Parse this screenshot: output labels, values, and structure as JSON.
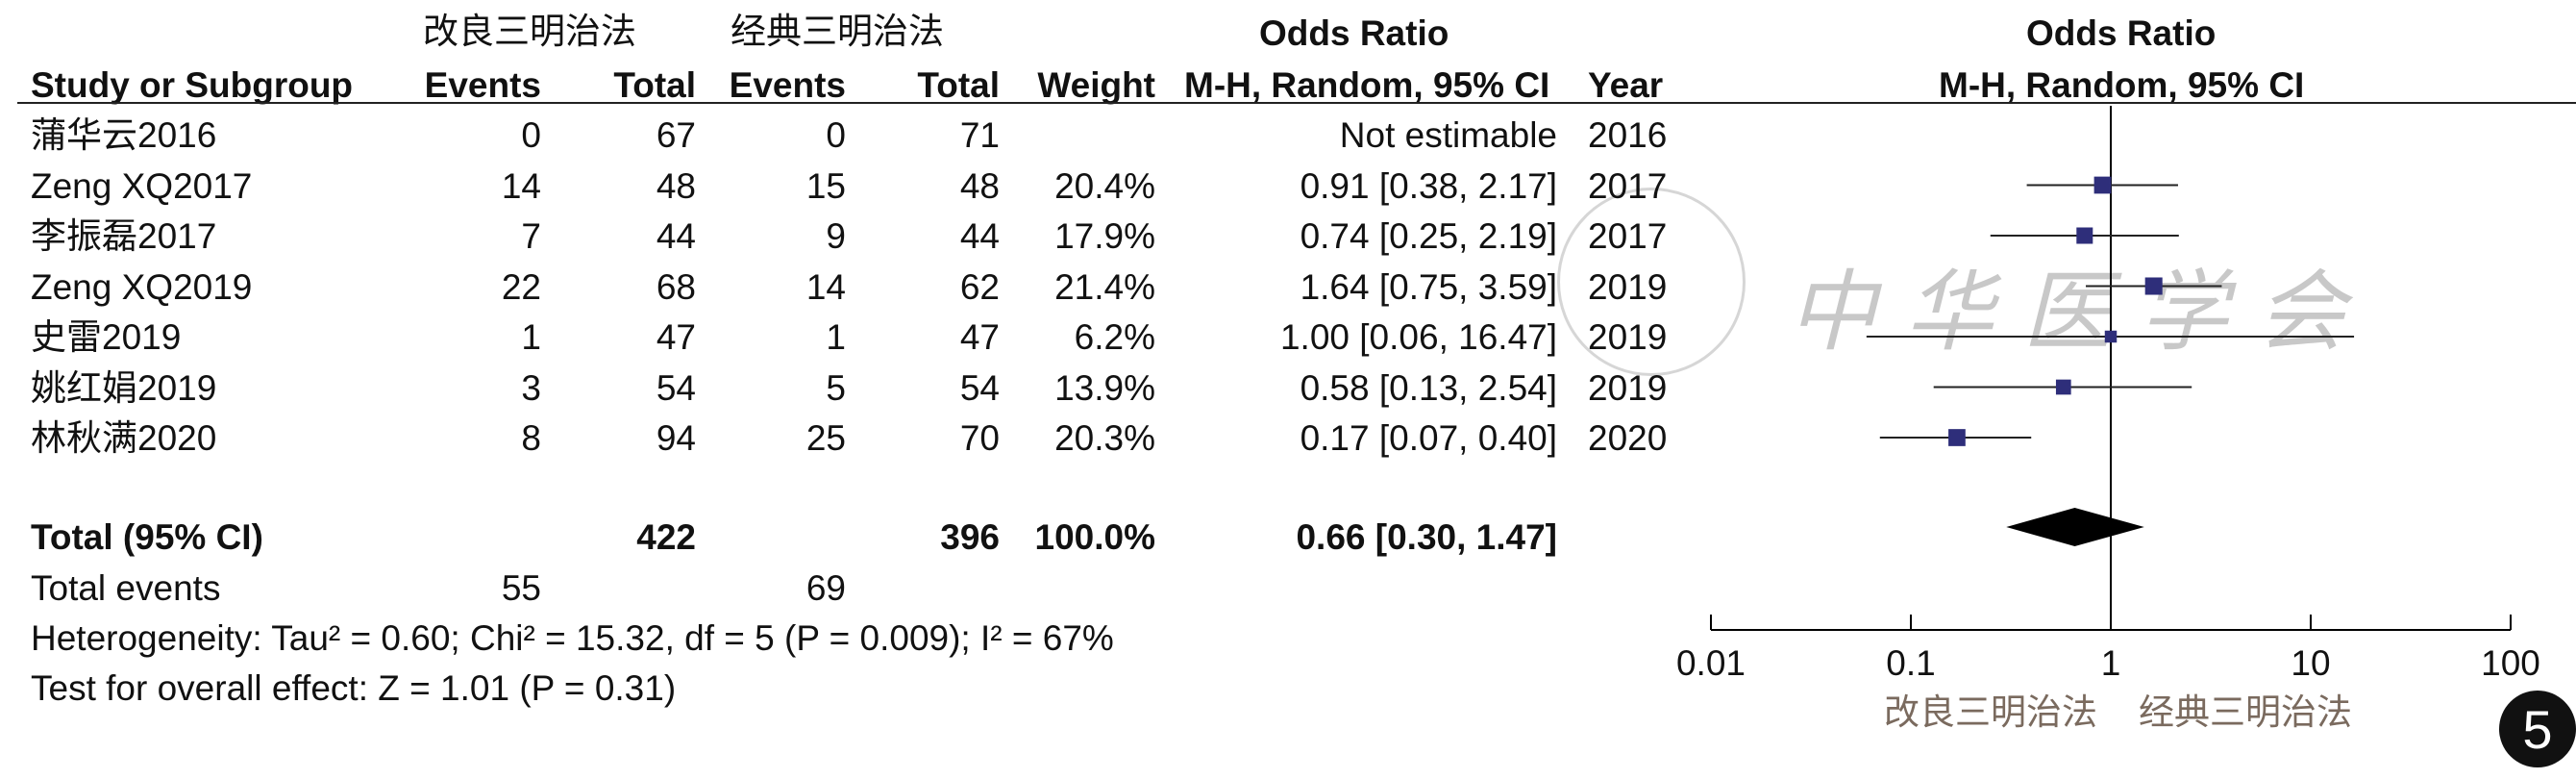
{
  "headers": {
    "group1": "改良三明治法",
    "group2": "经典三明治法",
    "odds_ratio": "Odds Ratio",
    "study": "Study or Subgroup",
    "events1": "Events",
    "total1": "Total",
    "events2": "Events",
    "total2": "Total",
    "weight": "Weight",
    "method": "M-H, Random, 95% CI",
    "year": "Year",
    "plot_title": "Odds Ratio",
    "plot_method": "M-H, Random, 95% CI"
  },
  "studies": [
    {
      "name": "蒲华云2016",
      "e1": "0",
      "t1": "67",
      "e2": "0",
      "t2": "71",
      "weight": "",
      "ci": "Not estimable",
      "year": "2016"
    },
    {
      "name": "Zeng XQ2017",
      "e1": "14",
      "t1": "48",
      "e2": "15",
      "t2": "48",
      "weight": "20.4%",
      "ci": "0.91 [0.38, 2.17]",
      "year": "2017"
    },
    {
      "name": "李振磊2017",
      "e1": "7",
      "t1": "44",
      "e2": "9",
      "t2": "44",
      "weight": "17.9%",
      "ci": "0.74 [0.25, 2.19]",
      "year": "2017"
    },
    {
      "name": "Zeng XQ2019",
      "e1": "22",
      "t1": "68",
      "e2": "14",
      "t2": "62",
      "weight": "21.4%",
      "ci": "1.64 [0.75, 3.59]",
      "year": "2019"
    },
    {
      "name": "史雷2019",
      "e1": "1",
      "t1": "47",
      "e2": "1",
      "t2": "47",
      "weight": "6.2%",
      "ci": "1.00 [0.06, 16.47]",
      "year": "2019"
    },
    {
      "name": "姚红娟2019",
      "e1": "3",
      "t1": "54",
      "e2": "5",
      "t2": "54",
      "weight": "13.9%",
      "ci": "0.58 [0.13, 2.54]",
      "year": "2019"
    },
    {
      "name": "林秋满2020",
      "e1": "8",
      "t1": "94",
      "e2": "25",
      "t2": "70",
      "weight": "20.3%",
      "ci": "0.17 [0.07, 0.40]",
      "year": "2020"
    }
  ],
  "total": {
    "label": "Total (95% CI)",
    "t1": "422",
    "t2": "396",
    "weight": "100.0%",
    "ci": "0.66 [0.30, 1.47]"
  },
  "total_events": {
    "label": "Total events",
    "e1": "55",
    "e2": "69"
  },
  "heterogeneity": "Heterogeneity: Tau² = 0.60; Chi² = 15.32, df = 5 (P = 0.009); I² = 67%",
  "overall_effect": "Test for overall effect: Z = 1.01 (P = 0.31)",
  "favours": {
    "left": "改良三明治法",
    "right": "经典三明治法"
  },
  "watermark": "中华医学会",
  "figure_number": "5",
  "colors": {
    "marker": "#2e2e7a",
    "diamond": "#000000",
    "favours_text": "#7a6a5e"
  },
  "chart_data": {
    "type": "forest",
    "x_scale": "log",
    "xlim": [
      0.01,
      100
    ],
    "x_ticks": [
      "0.01",
      "0.1",
      "1",
      "10",
      "100"
    ],
    "null_line": 1,
    "points": [
      {
        "or": null,
        "lo": null,
        "hi": null,
        "weight": 0
      },
      {
        "or": 0.91,
        "lo": 0.38,
        "hi": 2.17,
        "weight": 20.4
      },
      {
        "or": 0.74,
        "lo": 0.25,
        "hi": 2.19,
        "weight": 17.9
      },
      {
        "or": 1.64,
        "lo": 0.75,
        "hi": 3.59,
        "weight": 21.4
      },
      {
        "or": 1.0,
        "lo": 0.06,
        "hi": 16.47,
        "weight": 6.2
      },
      {
        "or": 0.58,
        "lo": 0.13,
        "hi": 2.54,
        "weight": 13.9
      },
      {
        "or": 0.17,
        "lo": 0.07,
        "hi": 0.4,
        "weight": 20.3
      }
    ],
    "pooled": {
      "or": 0.66,
      "lo": 0.3,
      "hi": 1.47
    }
  }
}
